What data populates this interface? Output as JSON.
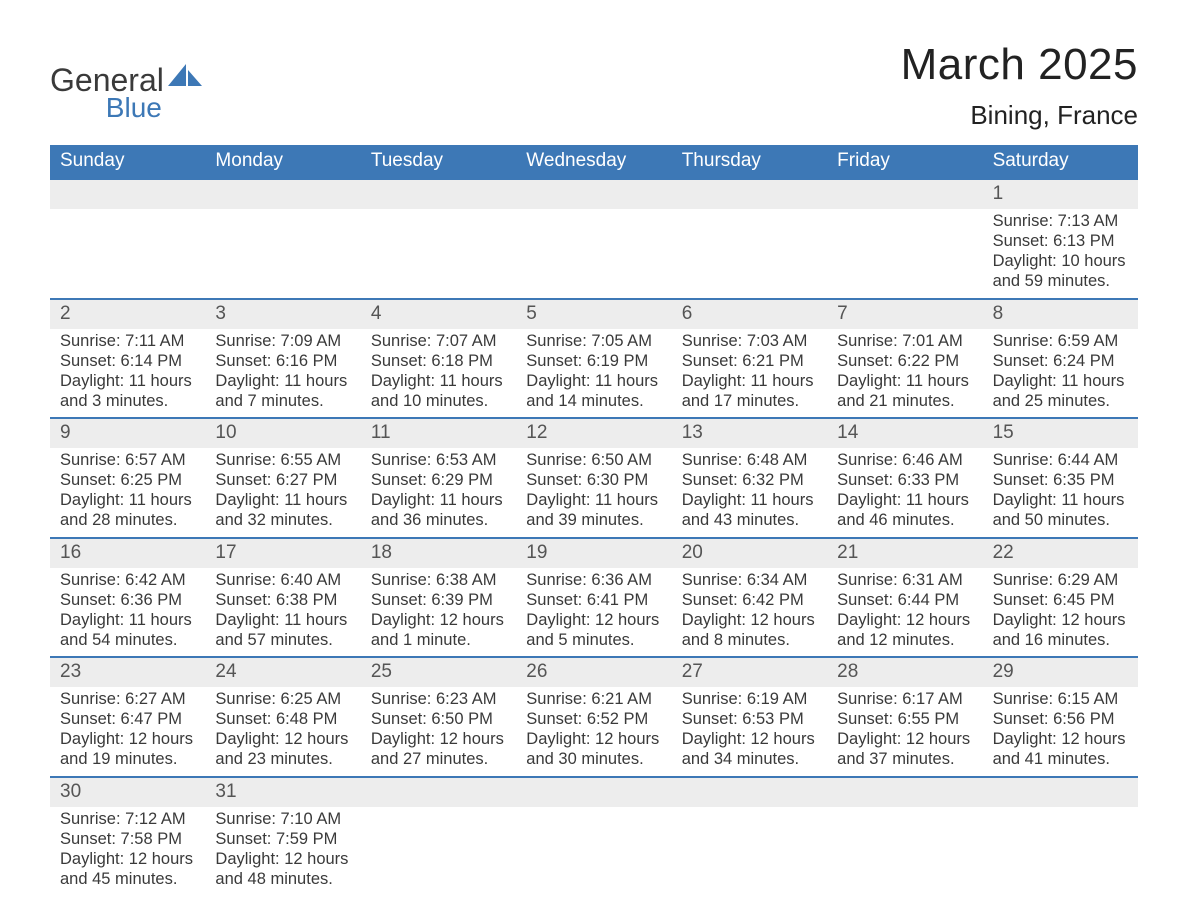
{
  "logo": {
    "word1": "General",
    "word2": "Blue",
    "colors": {
      "dark": "#3a3a3a",
      "blue": "#3d78b6"
    }
  },
  "header": {
    "month_title": "March 2025",
    "location": "Bining, France"
  },
  "colors": {
    "header_bg": "#3d78b6",
    "header_fg": "#ffffff",
    "daynum_bg": "#ededed",
    "week_border": "#3d78b6",
    "text": "#3a3a3a",
    "page_bg": "#ffffff"
  },
  "fonts": {
    "title_size_pt": 33,
    "location_size_pt": 20,
    "dow_size_pt": 14,
    "body_size_pt": 12
  },
  "days_of_week": [
    "Sunday",
    "Monday",
    "Tuesday",
    "Wednesday",
    "Thursday",
    "Friday",
    "Saturday"
  ],
  "weeks": [
    [
      null,
      null,
      null,
      null,
      null,
      null,
      {
        "n": "1",
        "sunrise": "Sunrise: 7:13 AM",
        "sunset": "Sunset: 6:13 PM",
        "daylight": "Daylight: 10 hours and 59 minutes."
      }
    ],
    [
      {
        "n": "2",
        "sunrise": "Sunrise: 7:11 AM",
        "sunset": "Sunset: 6:14 PM",
        "daylight": "Daylight: 11 hours and 3 minutes."
      },
      {
        "n": "3",
        "sunrise": "Sunrise: 7:09 AM",
        "sunset": "Sunset: 6:16 PM",
        "daylight": "Daylight: 11 hours and 7 minutes."
      },
      {
        "n": "4",
        "sunrise": "Sunrise: 7:07 AM",
        "sunset": "Sunset: 6:18 PM",
        "daylight": "Daylight: 11 hours and 10 minutes."
      },
      {
        "n": "5",
        "sunrise": "Sunrise: 7:05 AM",
        "sunset": "Sunset: 6:19 PM",
        "daylight": "Daylight: 11 hours and 14 minutes."
      },
      {
        "n": "6",
        "sunrise": "Sunrise: 7:03 AM",
        "sunset": "Sunset: 6:21 PM",
        "daylight": "Daylight: 11 hours and 17 minutes."
      },
      {
        "n": "7",
        "sunrise": "Sunrise: 7:01 AM",
        "sunset": "Sunset: 6:22 PM",
        "daylight": "Daylight: 11 hours and 21 minutes."
      },
      {
        "n": "8",
        "sunrise": "Sunrise: 6:59 AM",
        "sunset": "Sunset: 6:24 PM",
        "daylight": "Daylight: 11 hours and 25 minutes."
      }
    ],
    [
      {
        "n": "9",
        "sunrise": "Sunrise: 6:57 AM",
        "sunset": "Sunset: 6:25 PM",
        "daylight": "Daylight: 11 hours and 28 minutes."
      },
      {
        "n": "10",
        "sunrise": "Sunrise: 6:55 AM",
        "sunset": "Sunset: 6:27 PM",
        "daylight": "Daylight: 11 hours and 32 minutes."
      },
      {
        "n": "11",
        "sunrise": "Sunrise: 6:53 AM",
        "sunset": "Sunset: 6:29 PM",
        "daylight": "Daylight: 11 hours and 36 minutes."
      },
      {
        "n": "12",
        "sunrise": "Sunrise: 6:50 AM",
        "sunset": "Sunset: 6:30 PM",
        "daylight": "Daylight: 11 hours and 39 minutes."
      },
      {
        "n": "13",
        "sunrise": "Sunrise: 6:48 AM",
        "sunset": "Sunset: 6:32 PM",
        "daylight": "Daylight: 11 hours and 43 minutes."
      },
      {
        "n": "14",
        "sunrise": "Sunrise: 6:46 AM",
        "sunset": "Sunset: 6:33 PM",
        "daylight": "Daylight: 11 hours and 46 minutes."
      },
      {
        "n": "15",
        "sunrise": "Sunrise: 6:44 AM",
        "sunset": "Sunset: 6:35 PM",
        "daylight": "Daylight: 11 hours and 50 minutes."
      }
    ],
    [
      {
        "n": "16",
        "sunrise": "Sunrise: 6:42 AM",
        "sunset": "Sunset: 6:36 PM",
        "daylight": "Daylight: 11 hours and 54 minutes."
      },
      {
        "n": "17",
        "sunrise": "Sunrise: 6:40 AM",
        "sunset": "Sunset: 6:38 PM",
        "daylight": "Daylight: 11 hours and 57 minutes."
      },
      {
        "n": "18",
        "sunrise": "Sunrise: 6:38 AM",
        "sunset": "Sunset: 6:39 PM",
        "daylight": "Daylight: 12 hours and 1 minute."
      },
      {
        "n": "19",
        "sunrise": "Sunrise: 6:36 AM",
        "sunset": "Sunset: 6:41 PM",
        "daylight": "Daylight: 12 hours and 5 minutes."
      },
      {
        "n": "20",
        "sunrise": "Sunrise: 6:34 AM",
        "sunset": "Sunset: 6:42 PM",
        "daylight": "Daylight: 12 hours and 8 minutes."
      },
      {
        "n": "21",
        "sunrise": "Sunrise: 6:31 AM",
        "sunset": "Sunset: 6:44 PM",
        "daylight": "Daylight: 12 hours and 12 minutes."
      },
      {
        "n": "22",
        "sunrise": "Sunrise: 6:29 AM",
        "sunset": "Sunset: 6:45 PM",
        "daylight": "Daylight: 12 hours and 16 minutes."
      }
    ],
    [
      {
        "n": "23",
        "sunrise": "Sunrise: 6:27 AM",
        "sunset": "Sunset: 6:47 PM",
        "daylight": "Daylight: 12 hours and 19 minutes."
      },
      {
        "n": "24",
        "sunrise": "Sunrise: 6:25 AM",
        "sunset": "Sunset: 6:48 PM",
        "daylight": "Daylight: 12 hours and 23 minutes."
      },
      {
        "n": "25",
        "sunrise": "Sunrise: 6:23 AM",
        "sunset": "Sunset: 6:50 PM",
        "daylight": "Daylight: 12 hours and 27 minutes."
      },
      {
        "n": "26",
        "sunrise": "Sunrise: 6:21 AM",
        "sunset": "Sunset: 6:52 PM",
        "daylight": "Daylight: 12 hours and 30 minutes."
      },
      {
        "n": "27",
        "sunrise": "Sunrise: 6:19 AM",
        "sunset": "Sunset: 6:53 PM",
        "daylight": "Daylight: 12 hours and 34 minutes."
      },
      {
        "n": "28",
        "sunrise": "Sunrise: 6:17 AM",
        "sunset": "Sunset: 6:55 PM",
        "daylight": "Daylight: 12 hours and 37 minutes."
      },
      {
        "n": "29",
        "sunrise": "Sunrise: 6:15 AM",
        "sunset": "Sunset: 6:56 PM",
        "daylight": "Daylight: 12 hours and 41 minutes."
      }
    ],
    [
      {
        "n": "30",
        "sunrise": "Sunrise: 7:12 AM",
        "sunset": "Sunset: 7:58 PM",
        "daylight": "Daylight: 12 hours and 45 minutes."
      },
      {
        "n": "31",
        "sunrise": "Sunrise: 7:10 AM",
        "sunset": "Sunset: 7:59 PM",
        "daylight": "Daylight: 12 hours and 48 minutes."
      },
      null,
      null,
      null,
      null,
      null
    ]
  ]
}
